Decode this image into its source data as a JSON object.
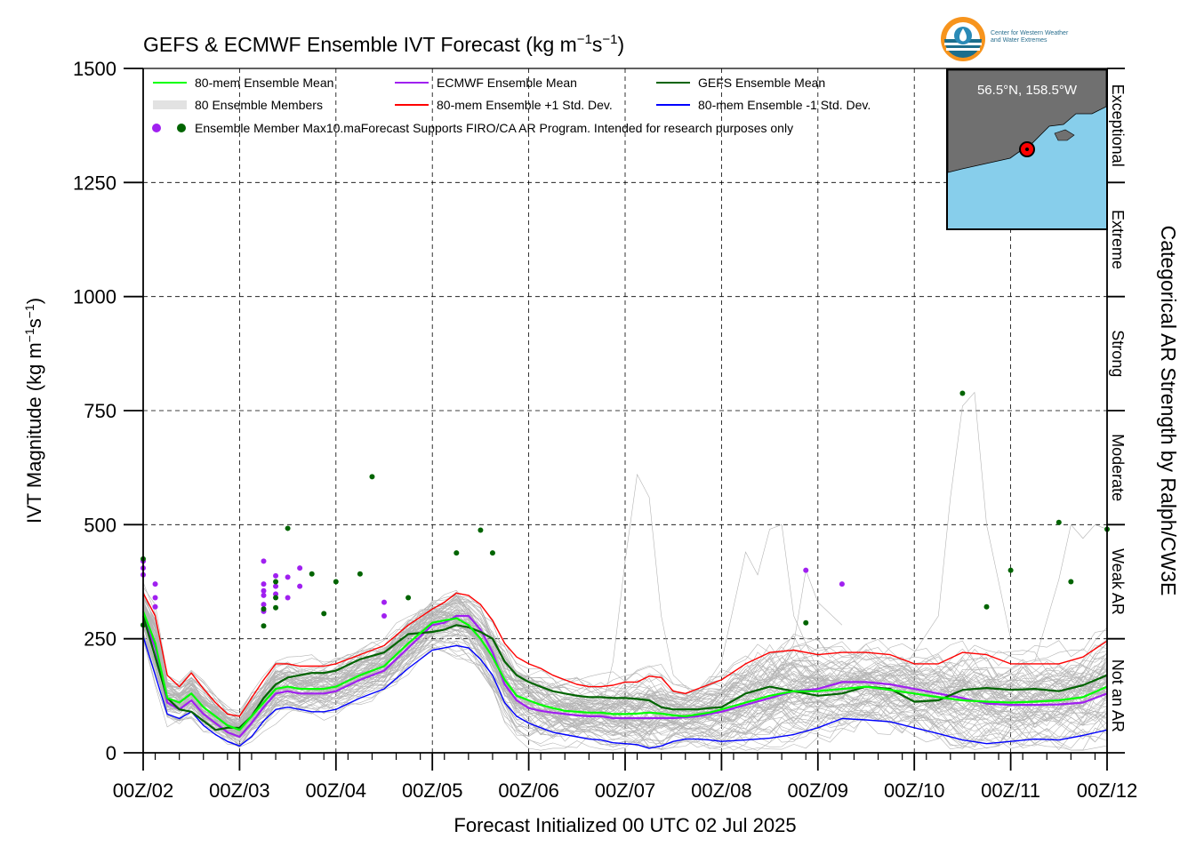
{
  "header": {
    "title_main": "GEFS & ECMWF Ensemble IVT Forecast (kg m",
    "title_sup1": "−1",
    "title_mid": "s",
    "title_sup2": "−1",
    "title_end": ")"
  },
  "logo": {
    "line1": "Center for Western Weather",
    "line2": "and Water Extremes"
  },
  "inset_map": {
    "location_label": "56.5°N, 158.5°W",
    "water_color": "#87ceeb",
    "land_color": "#707070"
  },
  "legend": {
    "items": [
      {
        "label": "80-mem Ensemble Mean",
        "color": "#00ff00",
        "style": "line"
      },
      {
        "label": "ECMWF Ensemble Mean",
        "color": "#a020f0",
        "style": "line"
      },
      {
        "label": "GEFS Ensemble Mean",
        "color": "#006400",
        "style": "line"
      },
      {
        "label": "80 Ensemble Members",
        "color": "#b0b0b0",
        "style": "thin-lines"
      },
      {
        "label": "80-mem Ensemble +1 Std. Dev.",
        "color": "#ff0000",
        "style": "line"
      },
      {
        "label": "80-mem Ensemble -1 Std. Dev.",
        "color": "#0000ff",
        "style": "line"
      }
    ],
    "max_label": "Ensemble Member Max",
    "disclaimer": "10.maForecast Supports FIRO/CA AR Program. Intended for research purposes only"
  },
  "chart_data": {
    "type": "line",
    "title": "GEFS & ECMWF Ensemble IVT Forecast (kg m−1s−1)",
    "xlabel": "Forecast Initialized 00 UTC 02 Jul 2025",
    "ylabel": "IVT Magnitude (kg m−1s−1)",
    "right_label": "Categorical AR Strength by Ralph/CW3E",
    "ylim": [
      0,
      1500
    ],
    "xlim": [
      0,
      240
    ],
    "x_unit": "hours",
    "yticks": [
      0,
      250,
      500,
      750,
      1000,
      1250,
      1500
    ],
    "xticks": [
      {
        "x": 0,
        "label": "00Z/02"
      },
      {
        "x": 24,
        "label": "00Z/03"
      },
      {
        "x": 48,
        "label": "00Z/04"
      },
      {
        "x": 72,
        "label": "00Z/05"
      },
      {
        "x": 96,
        "label": "00Z/06"
      },
      {
        "x": 120,
        "label": "00Z/07"
      },
      {
        "x": 144,
        "label": "00Z/08"
      },
      {
        "x": 168,
        "label": "00Z/09"
      },
      {
        "x": 192,
        "label": "00Z/10"
      },
      {
        "x": 216,
        "label": "00Z/11"
      },
      {
        "x": 240,
        "label": "00Z/12"
      }
    ],
    "categories_right": [
      {
        "label": "Not an AR",
        "from": 0,
        "to": 250
      },
      {
        "label": "Weak AR",
        "from": 250,
        "to": 500
      },
      {
        "label": "Moderate",
        "from": 500,
        "to": 750
      },
      {
        "label": "Strong",
        "from": 750,
        "to": 1000
      },
      {
        "label": "Extreme",
        "from": 1000,
        "to": 1250
      },
      {
        "label": "Exceptional",
        "from": 1250,
        "to": 1500
      }
    ],
    "grid": true,
    "legend_position": "top-left",
    "series": [
      {
        "name": "80-mem Ensemble Mean",
        "color": "#00ff00",
        "width": 2.2,
        "x": [
          0,
          3,
          6,
          9,
          12,
          15,
          18,
          21,
          24,
          27,
          30,
          33,
          36,
          39,
          42,
          45,
          48,
          54,
          60,
          66,
          72,
          75,
          78,
          81,
          84,
          87,
          90,
          93,
          96,
          99,
          102,
          105,
          108,
          111,
          114,
          117,
          120,
          123,
          126,
          129,
          132,
          135,
          138,
          141,
          144,
          150,
          156,
          162,
          168,
          174,
          180,
          186,
          192,
          198,
          204,
          210,
          216,
          222,
          228,
          234,
          240
        ],
        "y": [
          310,
          240,
          120,
          110,
          130,
          100,
          80,
          60,
          50,
          80,
          110,
          140,
          145,
          140,
          140,
          140,
          145,
          170,
          190,
          240,
          285,
          290,
          295,
          280,
          250,
          210,
          160,
          125,
          115,
          105,
          98,
          92,
          90,
          88,
          88,
          85,
          85,
          86,
          88,
          86,
          82,
          80,
          84,
          88,
          95,
          110,
          125,
          135,
          135,
          140,
          145,
          138,
          130,
          122,
          115,
          112,
          110,
          112,
          115,
          122,
          145
        ]
      },
      {
        "name": "ECMWF Ensemble Mean",
        "color": "#a020f0",
        "width": 2.2,
        "x": [
          0,
          3,
          6,
          9,
          12,
          15,
          18,
          21,
          24,
          27,
          30,
          33,
          36,
          39,
          42,
          45,
          48,
          54,
          60,
          66,
          72,
          75,
          78,
          81,
          84,
          87,
          90,
          93,
          96,
          99,
          102,
          105,
          108,
          111,
          114,
          117,
          120,
          123,
          126,
          129,
          132,
          135,
          138,
          141,
          144,
          150,
          156,
          162,
          168,
          174,
          180,
          186,
          192,
          198,
          204,
          210,
          216,
          222,
          228,
          234,
          240
        ],
        "y": [
          300,
          230,
          110,
          95,
          115,
          85,
          65,
          45,
          35,
          65,
          100,
          130,
          135,
          130,
          130,
          130,
          135,
          160,
          180,
          230,
          280,
          285,
          300,
          300,
          270,
          220,
          150,
          115,
          98,
          92,
          88,
          85,
          82,
          80,
          80,
          76,
          76,
          76,
          76,
          76,
          76,
          78,
          80,
          85,
          90,
          105,
          120,
          135,
          140,
          155,
          155,
          150,
          140,
          130,
          120,
          108,
          105,
          105,
          106,
          110,
          130
        ]
      },
      {
        "name": "GEFS Ensemble Mean",
        "color": "#006400",
        "width": 2.2,
        "x": [
          0,
          3,
          6,
          9,
          12,
          15,
          18,
          21,
          24,
          27,
          30,
          33,
          36,
          39,
          42,
          45,
          48,
          54,
          60,
          66,
          72,
          75,
          78,
          81,
          84,
          87,
          90,
          93,
          96,
          99,
          102,
          105,
          108,
          111,
          114,
          117,
          120,
          123,
          126,
          129,
          132,
          135,
          138,
          141,
          144,
          150,
          156,
          162,
          168,
          174,
          180,
          186,
          192,
          198,
          204,
          210,
          216,
          222,
          228,
          234,
          240
        ],
        "y": [
          300,
          210,
          120,
          95,
          90,
          70,
          50,
          55,
          55,
          80,
          120,
          150,
          165,
          170,
          175,
          175,
          180,
          205,
          220,
          260,
          265,
          270,
          280,
          275,
          265,
          250,
          200,
          170,
          155,
          145,
          135,
          130,
          125,
          122,
          122,
          120,
          120,
          118,
          115,
          100,
          95,
          95,
          95,
          98,
          100,
          130,
          145,
          135,
          125,
          130,
          145,
          140,
          112,
          115,
          138,
          142,
          138,
          140,
          135,
          148,
          170
        ]
      },
      {
        "name": "80-mem Ensemble +1 Std. Dev.",
        "color": "#ff0000",
        "width": 1.4,
        "x": [
          0,
          3,
          6,
          9,
          12,
          15,
          18,
          21,
          24,
          27,
          30,
          33,
          36,
          39,
          42,
          45,
          48,
          54,
          60,
          66,
          72,
          75,
          78,
          81,
          84,
          87,
          90,
          93,
          96,
          99,
          102,
          105,
          108,
          111,
          114,
          117,
          120,
          123,
          126,
          129,
          132,
          135,
          138,
          141,
          144,
          150,
          156,
          162,
          168,
          174,
          180,
          186,
          192,
          198,
          204,
          210,
          216,
          222,
          228,
          234,
          240
        ],
        "y": [
          350,
          300,
          170,
          145,
          175,
          140,
          110,
          85,
          80,
          120,
          160,
          195,
          195,
          190,
          190,
          190,
          195,
          215,
          235,
          280,
          315,
          330,
          350,
          345,
          325,
          290,
          240,
          210,
          195,
          185,
          170,
          160,
          150,
          145,
          145,
          148,
          155,
          155,
          168,
          165,
          135,
          130,
          140,
          150,
          160,
          195,
          220,
          225,
          215,
          220,
          220,
          215,
          195,
          195,
          220,
          215,
          195,
          195,
          195,
          210,
          245
        ]
      },
      {
        "name": "80-mem Ensemble -1 Std. Dev.",
        "color": "#0000ff",
        "width": 1.4,
        "x": [
          0,
          3,
          6,
          9,
          12,
          15,
          18,
          21,
          24,
          27,
          30,
          33,
          36,
          39,
          42,
          45,
          48,
          54,
          60,
          66,
          72,
          75,
          78,
          81,
          84,
          87,
          90,
          93,
          96,
          99,
          102,
          105,
          108,
          111,
          114,
          117,
          120,
          123,
          126,
          129,
          132,
          135,
          138,
          141,
          144,
          150,
          156,
          162,
          168,
          174,
          180,
          186,
          192,
          198,
          204,
          210,
          216,
          222,
          228,
          234,
          240
        ],
        "y": [
          255,
          170,
          85,
          75,
          90,
          60,
          40,
          25,
          15,
          35,
          70,
          95,
          100,
          95,
          90,
          90,
          95,
          120,
          140,
          185,
          225,
          230,
          235,
          230,
          205,
          170,
          110,
          80,
          65,
          55,
          45,
          40,
          35,
          30,
          28,
          22,
          20,
          18,
          10,
          15,
          25,
          30,
          30,
          28,
          25,
          28,
          32,
          40,
          55,
          75,
          72,
          68,
          55,
          42,
          28,
          20,
          25,
          30,
          28,
          38,
          50
        ]
      }
    ],
    "max_points_ecmwf": {
      "color": "#a020f0",
      "x": [
        0,
        0,
        0,
        3,
        3,
        3,
        30,
        30,
        30,
        30,
        30,
        30,
        33,
        33,
        33,
        36,
        36,
        39,
        39,
        60,
        60,
        165,
        174
      ],
      "y": [
        420,
        405,
        390,
        370,
        340,
        320,
        420,
        370,
        355,
        345,
        325,
        310,
        388,
        365,
        348,
        385,
        340,
        405,
        365,
        330,
        300,
        400,
        370
      ]
    },
    "max_points_gefs": {
      "color": "#006400",
      "x": [
        0,
        0,
        30,
        30,
        33,
        33,
        33,
        36,
        42,
        45,
        48,
        54,
        57,
        66,
        78,
        84,
        87,
        165,
        204,
        210,
        216,
        228,
        231,
        240
      ],
      "y": [
        425,
        280,
        278,
        315,
        375,
        340,
        318,
        492,
        392,
        305,
        375,
        392,
        605,
        340,
        438,
        488,
        438,
        285,
        788,
        320,
        400,
        505,
        375,
        490
      ]
    },
    "members_note": "80 individual ensemble member traces drawn as thin gray lines"
  }
}
